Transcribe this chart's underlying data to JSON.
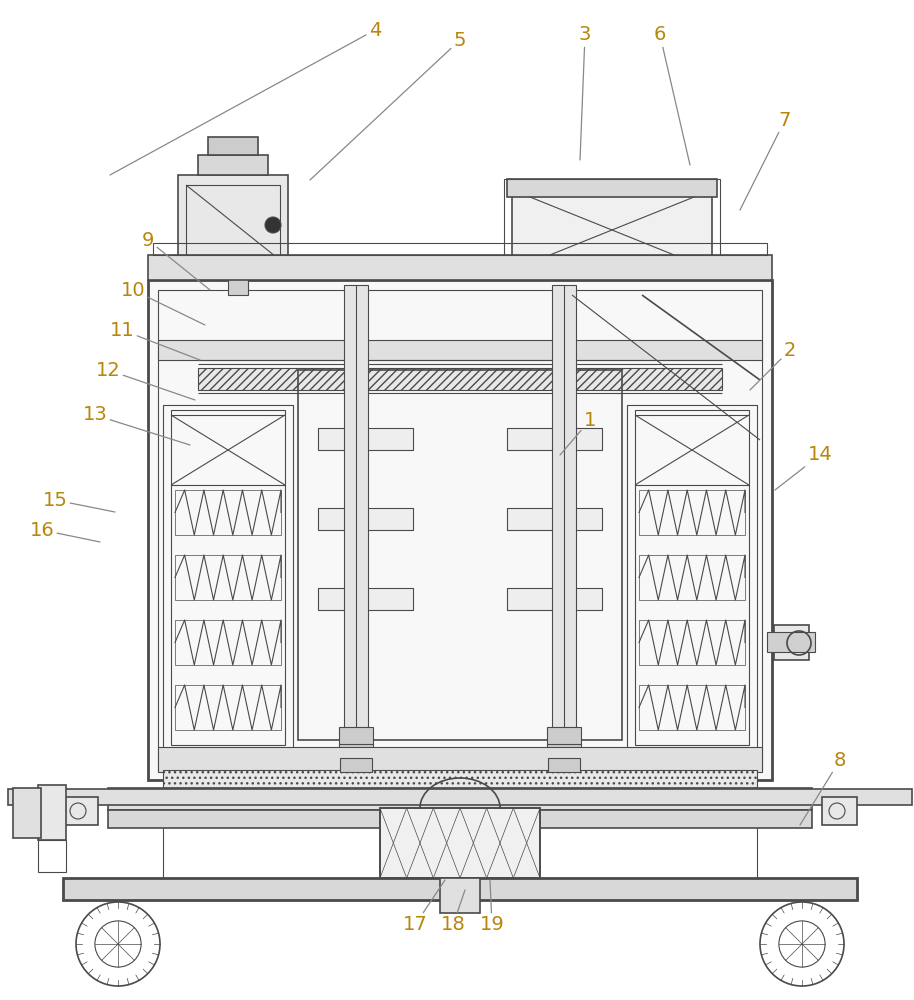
{
  "bg_color": "#ffffff",
  "line_color": "#4a4a4a",
  "label_color": "#b8860b",
  "figsize": [
    9.14,
    10.0
  ],
  "dpi": 100
}
